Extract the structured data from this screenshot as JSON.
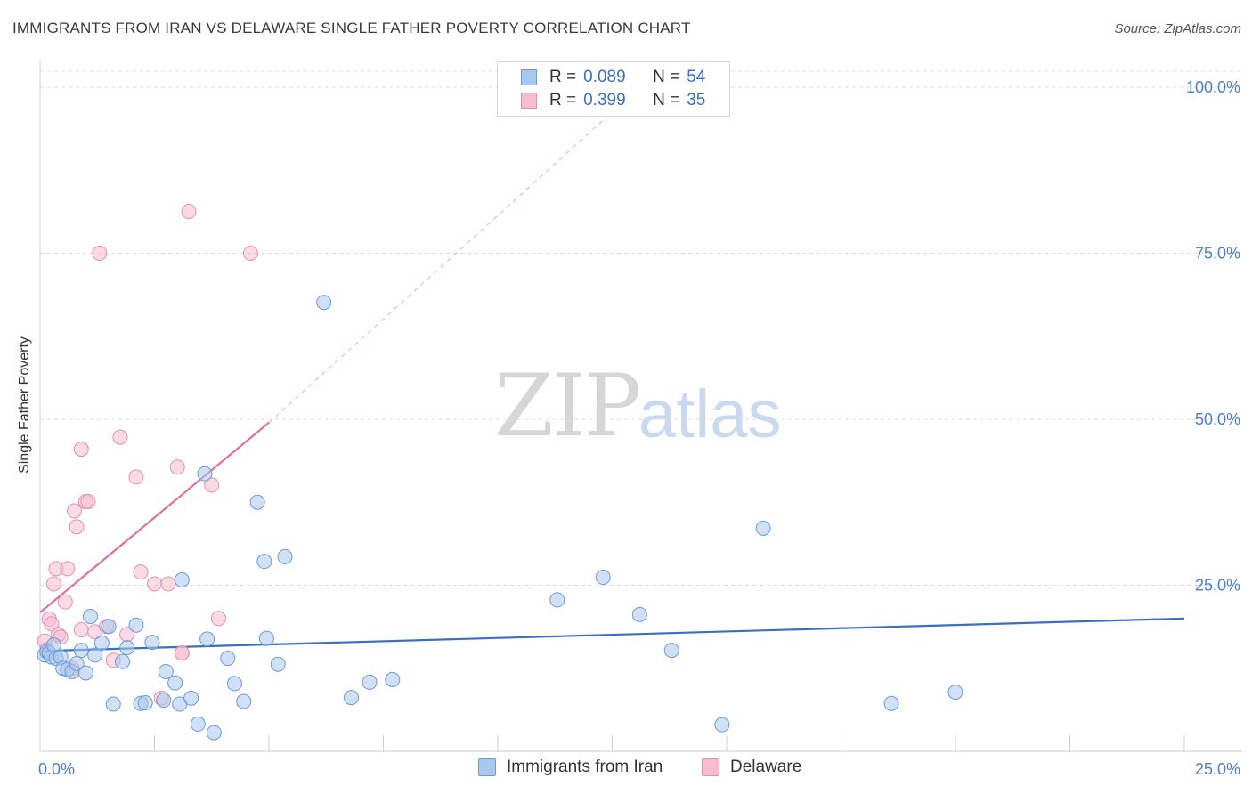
{
  "header": {
    "title": "IMMIGRANTS FROM IRAN VS DELAWARE SINGLE FATHER POVERTY CORRELATION CHART",
    "source": "Source: ZipAtlas.com"
  },
  "watermark": {
    "zip": "ZIP",
    "atlas": "atlas"
  },
  "legend": {
    "rows": [
      {
        "r_label": "R =",
        "r_value": "0.089",
        "n_label": "N =",
        "n_value": "54"
      },
      {
        "r_label": "R =",
        "r_value": "0.399",
        "n_label": "N =",
        "n_value": "35"
      }
    ]
  },
  "bottom_legend": {
    "items": [
      {
        "label": "Immigrants from Iran"
      },
      {
        "label": "Delaware"
      }
    ]
  },
  "colors": {
    "blue": "#3a6fc8",
    "blue_fill": "#a9c8ee",
    "pink": "#e0709a",
    "pink_fill": "#f6bcd0",
    "tick": "#4a7fd0"
  },
  "chart_data": {
    "type": "scatter",
    "title": "IMMIGRANTS FROM IRAN VS DELAWARE SINGLE FATHER POVERTY CORRELATION CHART",
    "xlabel": "",
    "ylabel": "Single Father Poverty",
    "xlim": [
      0,
      25
    ],
    "ylim": [
      0,
      100
    ],
    "x_tick_labels": [
      "0.0%",
      "25.0%"
    ],
    "y_tick_labels": [
      "25.0%",
      "50.0%",
      "75.0%",
      "100.0%"
    ],
    "y_tick_values": [
      25,
      50,
      75,
      100
    ],
    "grid": true,
    "series": [
      {
        "name": "Immigrants from Iran",
        "R": 0.089,
        "N": 54,
        "trend": {
          "x": [
            0,
            25
          ],
          "y": [
            15.1,
            20.0
          ],
          "style": "solid"
        },
        "points": [
          [
            0.1,
            14.5
          ],
          [
            0.15,
            15.0
          ],
          [
            0.2,
            14.8
          ],
          [
            0.25,
            14.2
          ],
          [
            0.3,
            16.0
          ],
          [
            0.35,
            14.0
          ],
          [
            0.45,
            14.2
          ],
          [
            0.5,
            12.5
          ],
          [
            0.6,
            12.3
          ],
          [
            0.7,
            12.0
          ],
          [
            0.8,
            13.2
          ],
          [
            0.9,
            15.2
          ],
          [
            1.0,
            11.8
          ],
          [
            1.1,
            20.3
          ],
          [
            1.2,
            14.5
          ],
          [
            1.35,
            16.3
          ],
          [
            1.5,
            18.8
          ],
          [
            1.6,
            7.1
          ],
          [
            1.8,
            13.5
          ],
          [
            1.9,
            15.6
          ],
          [
            2.1,
            19.0
          ],
          [
            2.2,
            7.2
          ],
          [
            2.3,
            7.3
          ],
          [
            2.45,
            16.4
          ],
          [
            2.7,
            7.7
          ],
          [
            2.75,
            12.0
          ],
          [
            2.95,
            10.3
          ],
          [
            3.05,
            7.1
          ],
          [
            3.1,
            25.8
          ],
          [
            3.3,
            8.0
          ],
          [
            3.45,
            4.1
          ],
          [
            3.6,
            41.8
          ],
          [
            3.65,
            16.9
          ],
          [
            3.8,
            2.8
          ],
          [
            4.1,
            14.0
          ],
          [
            4.25,
            10.2
          ],
          [
            4.45,
            7.5
          ],
          [
            4.75,
            37.5
          ],
          [
            4.9,
            28.6
          ],
          [
            4.95,
            17.0
          ],
          [
            5.2,
            13.1
          ],
          [
            5.35,
            29.3
          ],
          [
            6.2,
            67.6
          ],
          [
            6.8,
            8.1
          ],
          [
            7.2,
            10.4
          ],
          [
            7.7,
            10.8
          ],
          [
            11.3,
            22.8
          ],
          [
            12.3,
            26.2
          ],
          [
            13.1,
            20.6
          ],
          [
            13.8,
            15.2
          ],
          [
            14.9,
            4.0
          ],
          [
            15.8,
            33.6
          ],
          [
            18.6,
            7.2
          ],
          [
            20.0,
            8.9
          ]
        ]
      },
      {
        "name": "Delaware",
        "R": 0.399,
        "N": 35,
        "trend": {
          "x": [
            0,
            5.0
          ],
          "y": [
            20.9,
            49.5
          ],
          "style": "solid",
          "extension": {
            "x": [
              5.0,
              13.1
            ],
            "y": [
              49.5,
              100
            ],
            "style": "dashed"
          }
        },
        "points": [
          [
            0.1,
            16.6
          ],
          [
            0.15,
            15.3
          ],
          [
            0.2,
            19.9
          ],
          [
            0.25,
            19.2
          ],
          [
            0.3,
            25.2
          ],
          [
            0.35,
            27.5
          ],
          [
            0.4,
            17.6
          ],
          [
            0.45,
            17.2
          ],
          [
            0.55,
            22.5
          ],
          [
            0.6,
            27.5
          ],
          [
            0.7,
            12.5
          ],
          [
            0.75,
            36.2
          ],
          [
            0.8,
            33.8
          ],
          [
            0.9,
            18.3
          ],
          [
            0.9,
            45.5
          ],
          [
            1.0,
            37.6
          ],
          [
            1.05,
            37.6
          ],
          [
            1.2,
            18.0
          ],
          [
            1.3,
            75.0
          ],
          [
            1.45,
            18.8
          ],
          [
            1.6,
            13.7
          ],
          [
            1.75,
            47.3
          ],
          [
            1.9,
            17.6
          ],
          [
            2.1,
            41.3
          ],
          [
            2.2,
            27.0
          ],
          [
            2.5,
            25.2
          ],
          [
            2.65,
            8.0
          ],
          [
            2.8,
            25.2
          ],
          [
            3.0,
            42.8
          ],
          [
            3.1,
            14.8
          ],
          [
            3.25,
            81.3
          ],
          [
            3.75,
            40.1
          ],
          [
            3.9,
            20.0
          ],
          [
            4.6,
            75.0
          ],
          [
            3.1,
            14.8
          ]
        ]
      }
    ]
  }
}
